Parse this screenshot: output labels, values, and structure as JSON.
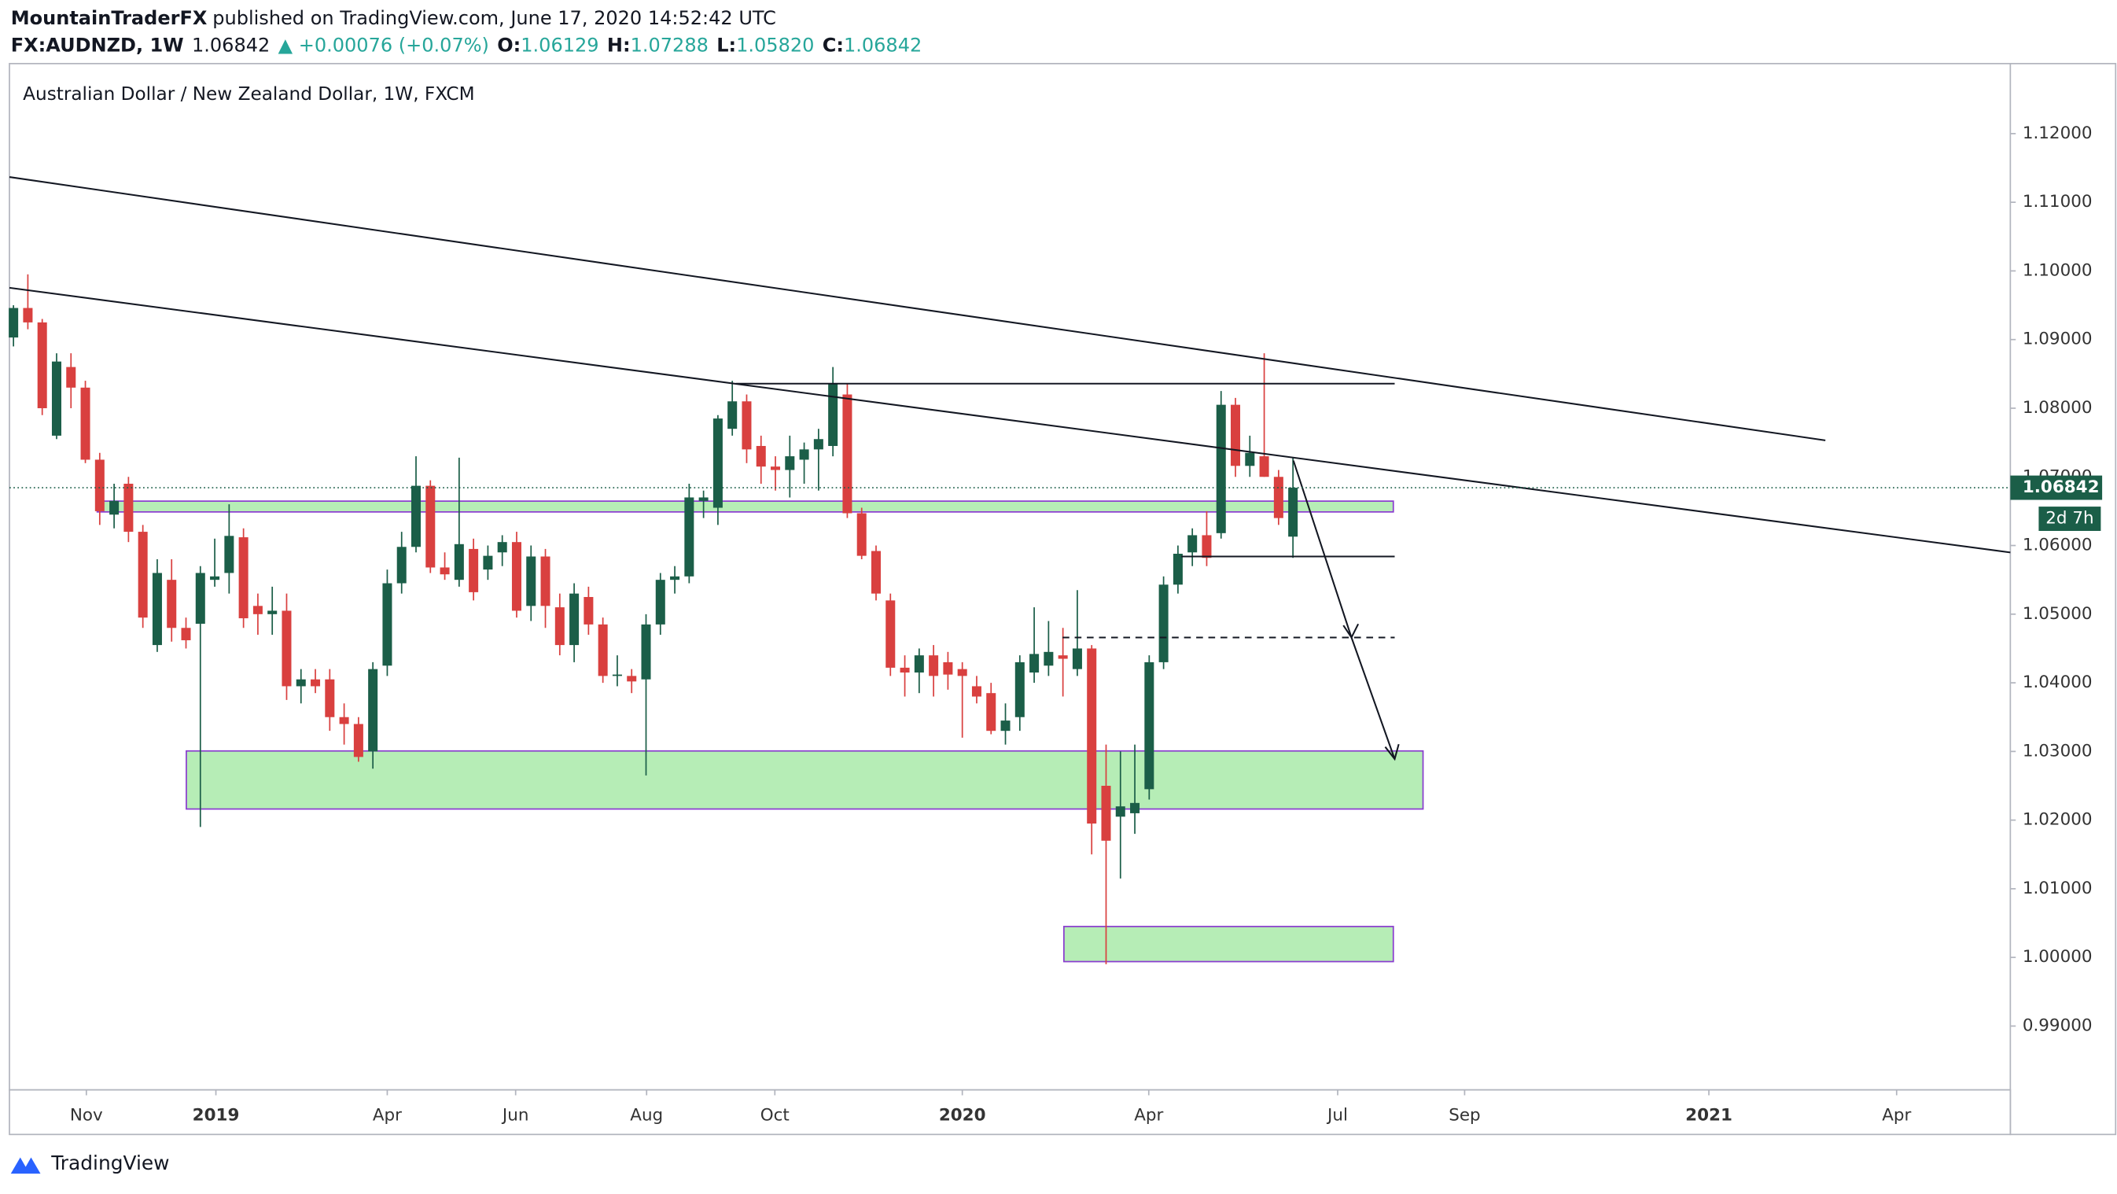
{
  "header": {
    "author": "MountainTraderFX",
    "published": "published on TradingView.com, June 17, 2020 14:52:42 UTC",
    "symbol": "FX:AUDNZD, 1W",
    "last": "1.06842",
    "change": "▲ +0.00076 (+0.07%)",
    "o_label": "O:",
    "o": "1.06129",
    "h_label": "H:",
    "h": "1.07288",
    "l_label": "L:",
    "l": "1.05820",
    "c_label": "C:",
    "c": "1.06842"
  },
  "footer": {
    "brand": "TradingView"
  },
  "chart_data": {
    "type": "candlestick",
    "title": "Australian Dollar / New Zealand Dollar, 1W, FXCM",
    "up_color": "#1b5e48",
    "down_color": "#d9403f",
    "last_price_label": "1.06842",
    "countdown": "2d 7h",
    "last_color": "#1b5e48",
    "xlim": [
      -0.28,
      138.9
    ],
    "ylim": [
      0.9807,
      1.1302
    ],
    "xticks": [
      {
        "value": 5.07,
        "label": "Nov"
      },
      {
        "value": 14.08,
        "label": "2019"
      },
      {
        "value": 26.0,
        "label": "Apr"
      },
      {
        "value": 34.93,
        "label": "Jun"
      },
      {
        "value": 44.04,
        "label": "Aug"
      },
      {
        "value": 52.96,
        "label": "Oct"
      },
      {
        "value": 66.0,
        "label": "2020"
      },
      {
        "value": 78.97,
        "label": "Apr"
      },
      {
        "value": 92.11,
        "label": "Jul"
      },
      {
        "value": 100.94,
        "label": "Sep"
      },
      {
        "value": 117.93,
        "label": "2021"
      },
      {
        "value": 130.99,
        "label": "Apr"
      }
    ],
    "yticks": [
      {
        "value": 0.99,
        "label": "0.99000"
      },
      {
        "value": 1.0,
        "label": "1.00000"
      },
      {
        "value": 1.01,
        "label": "1.01000"
      },
      {
        "value": 1.02,
        "label": "1.02000"
      },
      {
        "value": 1.03,
        "label": "1.03000"
      },
      {
        "value": 1.04,
        "label": "1.04000"
      },
      {
        "value": 1.05,
        "label": "1.05000"
      },
      {
        "value": 1.06,
        "label": "1.06000"
      },
      {
        "value": 1.07,
        "label": "1.07000"
      },
      {
        "value": 1.08,
        "label": "1.08000"
      },
      {
        "value": 1.09,
        "label": "1.09000"
      },
      {
        "value": 1.1,
        "label": "1.10000"
      },
      {
        "value": 1.11,
        "label": "1.11000"
      },
      {
        "value": 1.12,
        "label": "1.12000"
      }
    ],
    "open": [
      1.0903,
      1.0946,
      1.0925,
      1.076,
      1.086,
      1.083,
      1.0725,
      1.0645,
      1.069,
      1.062,
      1.0455,
      1.055,
      1.048,
      1.0486,
      1.055,
      1.056,
      1.0612,
      1.0512,
      1.05,
      1.0505,
      1.0395,
      1.0405,
      1.0405,
      1.035,
      1.034,
      1.03,
      1.0425,
      1.0545,
      1.0598,
      1.0687,
      1.0568,
      1.055,
      1.0595,
      1.0565,
      1.059,
      1.0605,
      1.0512,
      1.0584,
      1.051,
      1.0455,
      1.0525,
      1.0485,
      1.041,
      1.041,
      1.0405,
      1.0485,
      1.055,
      1.0555,
      1.0665,
      1.0655,
      1.077,
      1.081,
      1.0745,
      1.0715,
      1.071,
      1.0725,
      1.074,
      1.0745,
      1.082,
      1.0647,
      1.0592,
      1.052,
      1.0422,
      1.0415,
      1.044,
      1.043,
      1.042,
      1.0395,
      1.0385,
      1.033,
      1.035,
      1.0415,
      1.0425,
      1.044,
      1.042,
      1.045,
      1.025,
      1.0205,
      1.021,
      1.0245,
      1.043,
      1.0543,
      1.059,
      1.0615,
      1.0618,
      1.0805,
      1.0716,
      1.073,
      1.07,
      1.06129
    ],
    "high": [
      1.095,
      1.0995,
      1.093,
      1.088,
      1.088,
      1.084,
      1.0735,
      1.069,
      1.07,
      1.063,
      1.058,
      1.058,
      1.0495,
      1.057,
      1.061,
      1.066,
      1.0625,
      1.053,
      1.054,
      1.053,
      1.042,
      1.042,
      1.042,
      1.037,
      1.035,
      1.043,
      1.0565,
      1.062,
      1.073,
      1.0695,
      1.059,
      1.0728,
      1.061,
      1.06,
      1.0615,
      1.062,
      1.06,
      1.0595,
      1.053,
      1.0545,
      1.054,
      1.0495,
      1.044,
      1.042,
      1.05,
      1.056,
      1.057,
      1.069,
      1.068,
      1.079,
      1.084,
      1.082,
      1.076,
      1.073,
      1.076,
      1.075,
      1.077,
      1.086,
      1.0835,
      1.0655,
      1.06,
      1.053,
      1.044,
      1.045,
      1.0455,
      1.0445,
      1.043,
      1.041,
      1.04,
      1.037,
      1.044,
      1.051,
      1.049,
      1.048,
      1.0535,
      1.0455,
      1.031,
      1.03,
      1.031,
      1.044,
      1.0555,
      1.06,
      1.0625,
      1.065,
      1.0825,
      1.0815,
      1.076,
      1.088,
      1.071,
      1.07288
    ],
    "low": [
      1.089,
      1.0915,
      1.079,
      1.0755,
      1.08,
      1.072,
      1.063,
      1.0625,
      1.0605,
      1.048,
      1.0445,
      1.046,
      1.045,
      1.019,
      1.054,
      1.053,
      1.048,
      1.047,
      1.047,
      1.0375,
      1.037,
      1.0385,
      1.033,
      1.031,
      1.0285,
      1.0275,
      1.041,
      1.053,
      1.059,
      1.056,
      1.055,
      1.054,
      1.052,
      1.055,
      1.057,
      1.0495,
      1.049,
      1.048,
      1.044,
      1.043,
      1.047,
      1.04,
      1.0395,
      1.0385,
      1.0265,
      1.047,
      1.053,
      1.0545,
      1.064,
      1.063,
      1.076,
      1.072,
      1.069,
      1.068,
      1.067,
      1.069,
      1.068,
      1.073,
      1.064,
      1.058,
      1.052,
      1.041,
      1.038,
      1.0385,
      1.038,
      1.039,
      1.032,
      1.037,
      1.0325,
      1.031,
      1.033,
      1.04,
      1.041,
      1.038,
      1.041,
      1.015,
      0.999,
      1.0115,
      1.018,
      1.023,
      1.042,
      1.053,
      1.057,
      1.057,
      1.061,
      1.07,
      1.07,
      1.07,
      1.063,
      1.0582
    ],
    "close": [
      1.0946,
      1.0925,
      1.08,
      1.0868,
      1.083,
      1.0725,
      1.065,
      1.0665,
      1.062,
      1.0495,
      1.056,
      1.048,
      1.0462,
      1.056,
      1.0555,
      1.0614,
      1.0494,
      1.05,
      1.0505,
      1.0395,
      1.0405,
      1.0395,
      1.035,
      1.034,
      1.0292,
      1.042,
      1.0545,
      1.0598,
      1.0687,
      1.0568,
      1.0558,
      1.0602,
      1.0532,
      1.0585,
      1.0605,
      1.0505,
      1.0584,
      1.0512,
      1.0455,
      1.053,
      1.0485,
      1.041,
      1.0412,
      1.0402,
      1.0485,
      1.055,
      1.0555,
      1.067,
      1.067,
      1.0785,
      1.081,
      1.074,
      1.0715,
      1.071,
      1.073,
      1.074,
      1.0755,
      1.0835,
      1.0647,
      1.0585,
      1.053,
      1.0422,
      1.0415,
      1.044,
      1.041,
      1.0412,
      1.041,
      1.038,
      1.033,
      1.0345,
      1.043,
      1.0442,
      1.0445,
      1.0435,
      1.045,
      1.0195,
      1.017,
      1.022,
      1.0225,
      1.043,
      1.0543,
      1.0588,
      1.0615,
      1.0582,
      1.0805,
      1.0716,
      1.0735,
      1.07,
      1.064,
      1.06842
    ]
  }
}
